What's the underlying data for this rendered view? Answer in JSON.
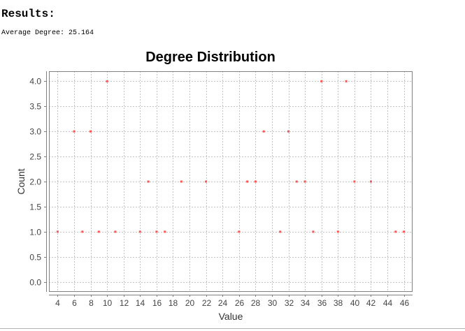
{
  "header": {
    "title": "Results:",
    "average_degree": "Average Degree: 25.164"
  },
  "chart_data": {
    "type": "scatter",
    "title": "Degree Distribution",
    "xlabel": "Value",
    "ylabel": "Count",
    "xlim": [
      2.95,
      47.05
    ],
    "ylim": [
      -0.2,
      4.2
    ],
    "grid": true,
    "point_color": "#ff5555",
    "x_ticks": [
      "4",
      "6",
      "8",
      "10",
      "12",
      "14",
      "16",
      "18",
      "20",
      "22",
      "24",
      "26",
      "28",
      "30",
      "32",
      "34",
      "36",
      "38",
      "40",
      "42",
      "44",
      "46"
    ],
    "y_ticks": [
      "0.0",
      "0.5",
      "1.0",
      "1.5",
      "2.0",
      "2.5",
      "3.0",
      "3.5",
      "4.0"
    ],
    "x": [
      4,
      6,
      7,
      8,
      9,
      10,
      11,
      14,
      15,
      16,
      17,
      19,
      22,
      26,
      27,
      28,
      29,
      31,
      32,
      33,
      34,
      35,
      36,
      38,
      39,
      40,
      42,
      45,
      46
    ],
    "y": [
      1,
      3,
      1,
      3,
      1,
      4,
      1,
      1,
      2,
      1,
      1,
      2,
      2,
      1,
      2,
      2,
      3,
      1,
      3,
      2,
      2,
      1,
      4,
      1,
      4,
      2,
      2,
      1,
      1
    ]
  }
}
